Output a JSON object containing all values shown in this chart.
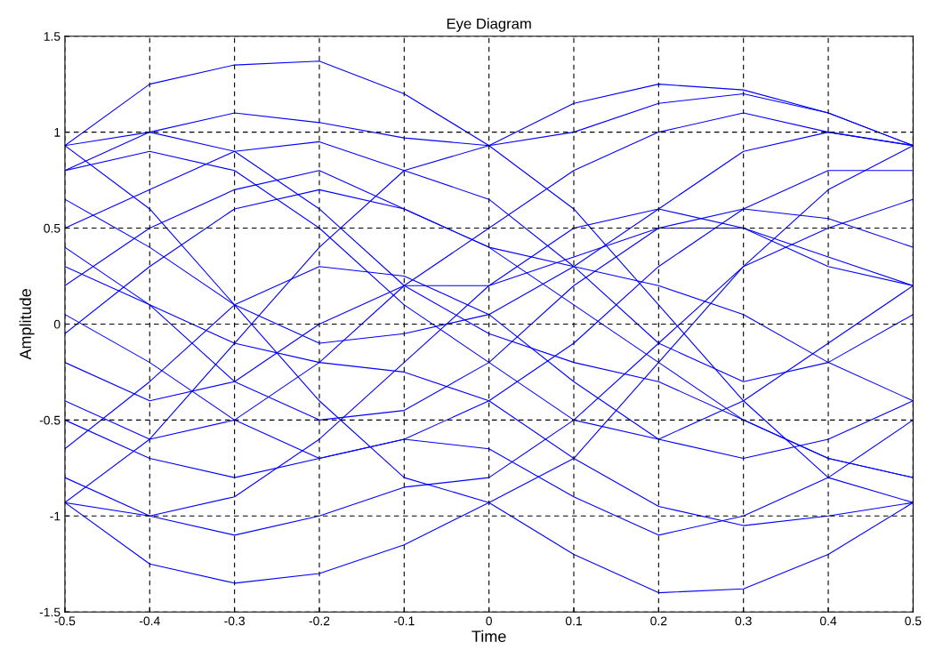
{
  "chart_data": {
    "type": "line",
    "title": "Eye Diagram",
    "xlabel": "Time",
    "ylabel": "Amplitude",
    "xlim": [
      -0.5,
      0.5
    ],
    "xticks": [
      -0.5,
      -0.4,
      -0.3,
      -0.2,
      -0.1,
      0,
      0.1,
      0.2,
      0.3,
      0.4,
      0.5
    ],
    "ylim": [
      -1.5,
      1.5
    ],
    "yticks": [
      -1.5,
      -1,
      -0.5,
      0,
      0.5,
      1,
      1.5
    ],
    "grid": true,
    "line_style": "solid",
    "marker": "none",
    "x": [
      -0.5,
      -0.4,
      -0.3,
      -0.2,
      -0.1,
      0,
      0.1,
      0.2,
      0.3,
      0.4,
      0.5
    ],
    "series": [
      {
        "color": "#0000ff",
        "values": [
          -0.93,
          -1.25,
          -1.35,
          -1.3,
          -1.15,
          -0.93,
          -1.2,
          -1.4,
          -1.38,
          -1.2,
          -0.93
        ]
      },
      {
        "color": "#0000ff",
        "values": [
          0.93,
          1.25,
          1.35,
          1.37,
          1.2,
          0.93,
          1.15,
          1.25,
          1.22,
          1.1,
          0.93
        ]
      },
      {
        "color": "#0000ff",
        "values": [
          0.93,
          0.6,
          0.1,
          -0.4,
          -0.8,
          -0.93,
          -0.7,
          -0.2,
          0.3,
          0.7,
          0.93
        ]
      },
      {
        "color": "#0000ff",
        "values": [
          -0.93,
          -0.6,
          -0.1,
          0.4,
          0.8,
          0.93,
          0.6,
          0.1,
          -0.4,
          -0.8,
          -0.93
        ]
      },
      {
        "color": "#0000ff",
        "values": [
          0.5,
          0.7,
          0.9,
          0.95,
          0.8,
          0.65,
          0.3,
          -0.1,
          -0.3,
          -0.2,
          0.05
        ]
      },
      {
        "color": "#0000ff",
        "values": [
          -0.5,
          -0.7,
          -0.8,
          -0.7,
          -0.6,
          -0.65,
          -0.9,
          -1.1,
          -1.0,
          -0.8,
          -0.5
        ]
      },
      {
        "color": "#0000ff",
        "values": [
          0.2,
          0.5,
          0.7,
          0.8,
          0.6,
          0.4,
          0.1,
          -0.2,
          -0.5,
          -0.7,
          -0.8
        ]
      },
      {
        "color": "#0000ff",
        "values": [
          -0.2,
          -0.4,
          -0.3,
          0.0,
          0.2,
          0.2,
          0.35,
          0.5,
          0.6,
          0.55,
          0.4
        ]
      },
      {
        "color": "#0000ff",
        "values": [
          0.05,
          -0.2,
          -0.5,
          -0.7,
          -0.6,
          -0.4,
          -0.1,
          0.3,
          0.6,
          0.8,
          0.8
        ]
      },
      {
        "color": "#0000ff",
        "values": [
          0.8,
          0.9,
          0.8,
          0.5,
          0.1,
          -0.2,
          -0.5,
          -0.6,
          -0.4,
          -0.1,
          0.2
        ]
      },
      {
        "color": "#0000ff",
        "values": [
          -0.8,
          -1.0,
          -1.1,
          -1.0,
          -0.85,
          -0.8,
          -0.5,
          -0.1,
          0.3,
          0.5,
          0.65
        ]
      },
      {
        "color": "#0000ff",
        "values": [
          0.65,
          0.4,
          0.1,
          -0.1,
          -0.05,
          0.05,
          0.3,
          0.6,
          0.9,
          1.0,
          0.93
        ]
      },
      {
        "color": "#0000ff",
        "values": [
          -0.65,
          -0.3,
          0.1,
          0.3,
          0.25,
          0.05,
          -0.3,
          -0.6,
          -0.7,
          -0.6,
          -0.4
        ]
      },
      {
        "color": "#0000ff",
        "values": [
          0.4,
          0.1,
          -0.3,
          -0.5,
          -0.45,
          -0.2,
          0.2,
          0.5,
          0.5,
          0.35,
          0.2
        ]
      },
      {
        "color": "#0000ff",
        "values": [
          -0.4,
          -0.6,
          -0.5,
          -0.2,
          0.2,
          0.5,
          0.8,
          1.0,
          1.1,
          1.0,
          0.93
        ]
      },
      {
        "color": "#0000ff",
        "values": [
          0.93,
          1.0,
          0.9,
          0.6,
          0.2,
          -0.05,
          -0.2,
          -0.3,
          -0.5,
          -0.7,
          -0.8
        ]
      },
      {
        "color": "#0000ff",
        "values": [
          -0.05,
          0.3,
          0.6,
          0.7,
          0.6,
          0.4,
          0.3,
          0.2,
          0.05,
          -0.2,
          -0.4
        ]
      },
      {
        "color": "#0000ff",
        "values": [
          0.3,
          0.1,
          -0.1,
          -0.2,
          -0.25,
          -0.4,
          -0.7,
          -0.95,
          -1.05,
          -1.0,
          -0.93
        ]
      },
      {
        "color": "#0000ff",
        "values": [
          -0.93,
          -1.0,
          -0.9,
          -0.6,
          -0.2,
          0.2,
          0.5,
          0.6,
          0.5,
          0.3,
          0.2
        ]
      },
      {
        "color": "#0000ff",
        "values": [
          0.8,
          1.0,
          1.1,
          1.05,
          0.97,
          0.93,
          1.0,
          1.15,
          1.2,
          1.1,
          0.93
        ]
      }
    ]
  }
}
